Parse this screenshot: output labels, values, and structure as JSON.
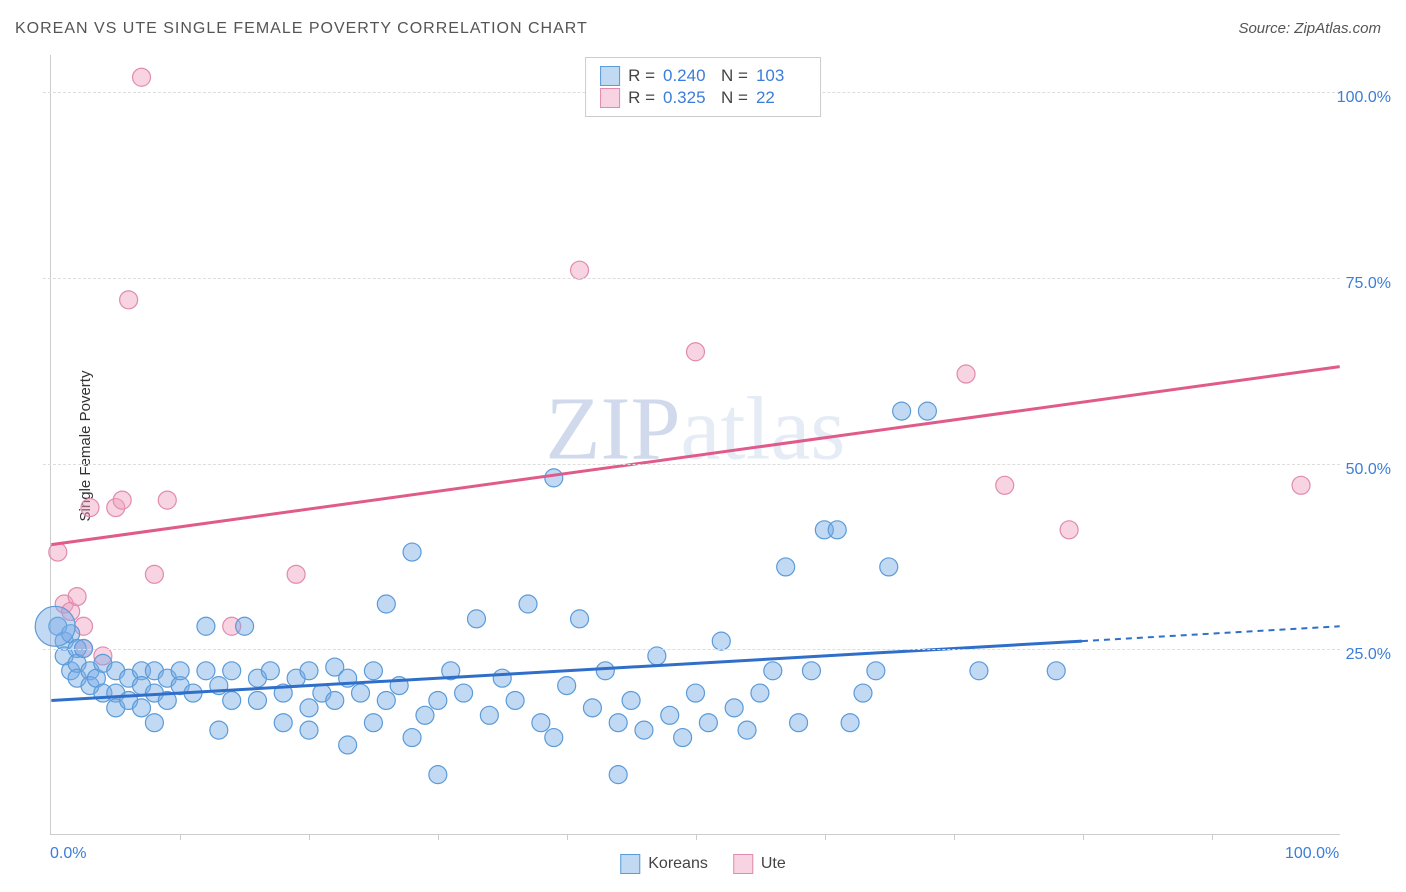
{
  "title": "KOREAN VS UTE SINGLE FEMALE POVERTY CORRELATION CHART",
  "source": "Source: ZipAtlas.com",
  "ylabel": "Single Female Poverty",
  "watermark_a": "ZIP",
  "watermark_b": "atlas",
  "chart": {
    "type": "scatter",
    "xlim": [
      0,
      100
    ],
    "ylim": [
      0,
      105
    ],
    "xticks": [
      0,
      100
    ],
    "xtick_labels": [
      "0.0%",
      "100.0%"
    ],
    "xtick_minor": [
      10,
      20,
      30,
      40,
      50,
      60,
      70,
      80,
      90
    ],
    "yticks": [
      25,
      50,
      75,
      100
    ],
    "ytick_labels": [
      "25.0%",
      "50.0%",
      "75.0%",
      "100.0%"
    ],
    "background_color": "#ffffff",
    "grid_color": "#dddddd",
    "tick_label_color": "#3b7dd8",
    "series": [
      {
        "name": "Koreans",
        "color_fill": "rgba(120,170,230,0.45)",
        "color_stroke": "#5a9bd8",
        "trend_color": "#2f6fc9",
        "marker_radius": 9,
        "R": "0.240",
        "N": "103",
        "trend": {
          "x1": 0,
          "y1": 18,
          "x2": 80,
          "y2": 26,
          "dash_x2": 100,
          "dash_y2": 28
        },
        "points": [
          [
            0.5,
            28
          ],
          [
            1,
            26
          ],
          [
            1,
            24
          ],
          [
            1.5,
            27
          ],
          [
            1.5,
            22
          ],
          [
            2,
            25
          ],
          [
            2,
            23
          ],
          [
            2,
            21
          ],
          [
            2.5,
            25
          ],
          [
            3,
            22
          ],
          [
            3,
            20
          ],
          [
            3.5,
            21
          ],
          [
            4,
            23
          ],
          [
            4,
            19
          ],
          [
            5,
            22
          ],
          [
            5,
            19
          ],
          [
            5,
            17
          ],
          [
            6,
            21
          ],
          [
            6,
            18
          ],
          [
            7,
            22
          ],
          [
            7,
            20
          ],
          [
            7,
            17
          ],
          [
            8,
            22
          ],
          [
            8,
            19
          ],
          [
            8,
            15
          ],
          [
            9,
            21
          ],
          [
            9,
            18
          ],
          [
            10,
            20
          ],
          [
            10,
            22
          ],
          [
            11,
            19
          ],
          [
            12,
            22
          ],
          [
            12,
            28
          ],
          [
            13,
            20
          ],
          [
            13,
            14
          ],
          [
            14,
            22
          ],
          [
            14,
            18
          ],
          [
            15,
            28
          ],
          [
            16,
            21
          ],
          [
            16,
            18
          ],
          [
            17,
            22
          ],
          [
            18,
            19
          ],
          [
            18,
            15
          ],
          [
            19,
            21
          ],
          [
            20,
            22
          ],
          [
            20,
            17
          ],
          [
            20,
            14
          ],
          [
            21,
            19
          ],
          [
            22,
            22.5
          ],
          [
            22,
            18
          ],
          [
            23,
            21
          ],
          [
            23,
            12
          ],
          [
            24,
            19
          ],
          [
            25,
            22
          ],
          [
            25,
            15
          ],
          [
            26,
            31
          ],
          [
            26,
            18
          ],
          [
            27,
            20
          ],
          [
            28,
            38
          ],
          [
            28,
            13
          ],
          [
            29,
            16
          ],
          [
            30,
            18
          ],
          [
            30,
            8
          ],
          [
            31,
            22
          ],
          [
            32,
            19
          ],
          [
            33,
            29
          ],
          [
            34,
            16
          ],
          [
            35,
            21
          ],
          [
            36,
            18
          ],
          [
            37,
            31
          ],
          [
            38,
            15
          ],
          [
            39,
            48
          ],
          [
            39,
            13
          ],
          [
            40,
            20
          ],
          [
            41,
            29
          ],
          [
            42,
            17
          ],
          [
            43,
            22
          ],
          [
            44,
            15
          ],
          [
            44,
            8
          ],
          [
            45,
            18
          ],
          [
            46,
            14
          ],
          [
            47,
            24
          ],
          [
            48,
            16
          ],
          [
            49,
            13
          ],
          [
            50,
            19
          ],
          [
            51,
            15
          ],
          [
            52,
            26
          ],
          [
            53,
            17
          ],
          [
            54,
            14
          ],
          [
            55,
            19
          ],
          [
            56,
            22
          ],
          [
            57,
            36
          ],
          [
            58,
            15
          ],
          [
            59,
            22
          ],
          [
            60,
            41
          ],
          [
            61,
            41
          ],
          [
            62,
            15
          ],
          [
            63,
            19
          ],
          [
            64,
            22
          ],
          [
            65,
            36
          ],
          [
            66,
            57
          ],
          [
            68,
            57
          ],
          [
            72,
            22
          ],
          [
            78,
            22
          ]
        ],
        "large_points": [
          [
            0.3,
            28,
            20
          ]
        ]
      },
      {
        "name": "Ute",
        "color_fill": "rgba(240,160,190,0.45)",
        "color_stroke": "#e08bad",
        "trend_color": "#e05a8a",
        "marker_radius": 9,
        "R": "0.325",
        "N": "22",
        "trend": {
          "x1": 0,
          "y1": 39,
          "x2": 100,
          "y2": 63,
          "dash_x2": 100,
          "dash_y2": 63
        },
        "points": [
          [
            0.5,
            38
          ],
          [
            1,
            31
          ],
          [
            1.5,
            30
          ],
          [
            2,
            32
          ],
          [
            2.5,
            28
          ],
          [
            2.5,
            25
          ],
          [
            3,
            44
          ],
          [
            4,
            24
          ],
          [
            5,
            44
          ],
          [
            5.5,
            45
          ],
          [
            6,
            72
          ],
          [
            7,
            102
          ],
          [
            8,
            35
          ],
          [
            9,
            45
          ],
          [
            14,
            28
          ],
          [
            19,
            35
          ],
          [
            41,
            76
          ],
          [
            50,
            65
          ],
          [
            71,
            62
          ],
          [
            74,
            47
          ],
          [
            79,
            41
          ],
          [
            97,
            47
          ]
        ],
        "large_points": []
      }
    ]
  },
  "legend": {
    "series1_label": "Koreans",
    "series2_label": "Ute",
    "stat_r_label": "R =",
    "stat_n_label": "N ="
  }
}
